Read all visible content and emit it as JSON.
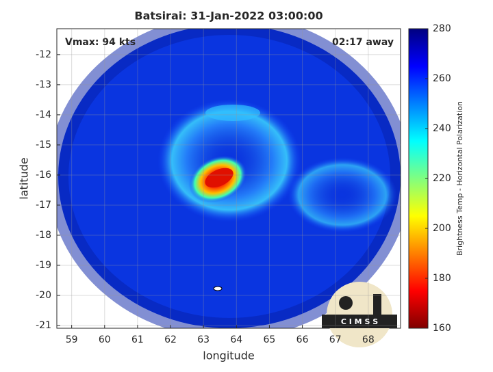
{
  "chart_data": {
    "type": "image",
    "title": "Batsirai: 31-Jan-2022 03:00:00",
    "annotations": [
      "Vmax: 94 kts",
      "02:17 away"
    ],
    "xlabel": "longitude",
    "ylabel": "latitude",
    "xlim": [
      58.55,
      68.98
    ],
    "xticks": [
      59,
      60,
      61,
      62,
      63,
      64,
      65,
      66,
      67,
      68
    ],
    "ylim": [
      -21.09,
      -11.14
    ],
    "yticks": [
      -21,
      -20,
      -19,
      -18,
      -17,
      -16,
      -15,
      -14,
      -13,
      -12
    ],
    "grid": true,
    "colorbar": {
      "label": "Brightness Temp - Horizontal Polarization",
      "lim": [
        160,
        280
      ],
      "ticks": [
        160,
        180,
        200,
        220,
        240,
        260,
        280
      ],
      "colors": [
        "#800000",
        "#ff0000",
        "#ff8000",
        "#ffff00",
        "#80ff80",
        "#00ffff",
        "#0080ff",
        "#0000ff",
        "#000080"
      ]
    },
    "logo": "C I M S S"
  }
}
